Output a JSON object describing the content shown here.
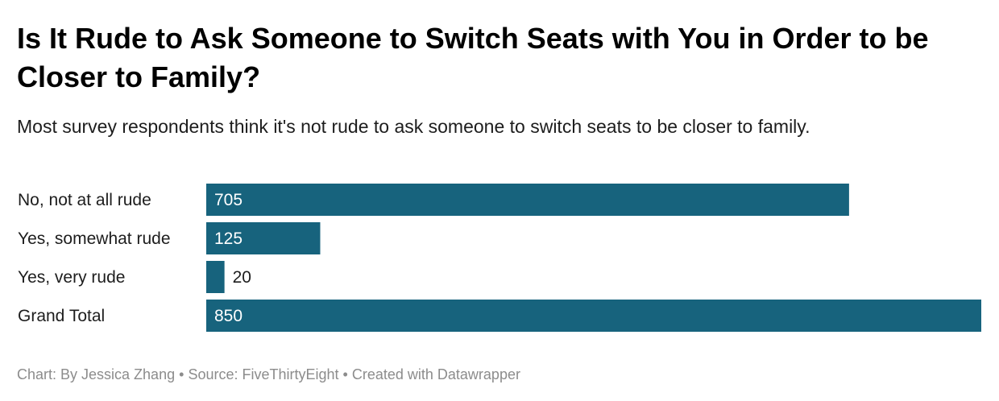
{
  "title": "Is It Rude to Ask Someone to Switch Seats with You in Order to be Closer to Family?",
  "subtitle": "Most survey respondents think it's not rude to ask someone to switch seats to be closer to family.",
  "footer": {
    "chart_by": "Chart: By Jessica Zhang",
    "source": "Source: FiveThirtyEight",
    "created_with": "Created with Datawrapper",
    "separator": "•"
  },
  "colors": {
    "bar": "#17637d",
    "label_inside": "#ffffff",
    "label_outside": "#1d1d1d"
  },
  "chart_data": {
    "type": "bar",
    "orientation": "horizontal",
    "categories": [
      "No, not at all rude",
      "Yes, somewhat rude",
      "Yes, very rude",
      "Grand Total"
    ],
    "values": [
      705,
      125,
      20,
      850
    ],
    "value_labels": [
      "705",
      "125",
      "20",
      "850"
    ],
    "xlim": [
      0,
      850
    ],
    "grid": false,
    "legend": "none"
  }
}
